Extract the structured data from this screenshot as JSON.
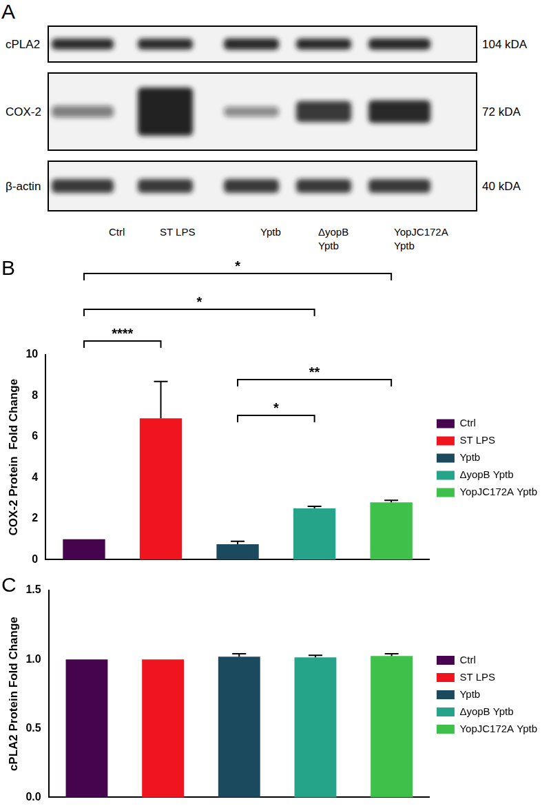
{
  "panels": [
    "A",
    "B",
    "C"
  ],
  "blot": {
    "rows": [
      {
        "label": "cPLA2",
        "size": "104 kDA"
      },
      {
        "label": "COX-2",
        "size": "72 kDA"
      },
      {
        "label": "β-actin",
        "size": "40 kDA"
      }
    ],
    "lanes": [
      [
        "Ctrl"
      ],
      [
        "ST LPS"
      ],
      [
        "Yptb"
      ],
      [
        "ΔyopB",
        "Yptb"
      ],
      [
        "YopJC172A",
        "Yptb"
      ]
    ]
  },
  "chart_data": [
    {
      "type": "bar",
      "categories": [
        "Ctrl",
        "ST LPS",
        "Yptb",
        "ΔyopB Yptb",
        "YopJC172A Yptb"
      ],
      "values": [
        1.0,
        6.9,
        0.75,
        2.5,
        2.8
      ],
      "errors": [
        0,
        1.8,
        0.15,
        0.1,
        0.1
      ],
      "colors": [
        "#46044e",
        "#f0141e",
        "#1b4a5e",
        "#25a48a",
        "#3fc04a"
      ],
      "ylabel": "COX-2 Protein  Fold Change",
      "ylim": [
        0,
        10
      ],
      "yticks": [
        0,
        2,
        4,
        6,
        8,
        10
      ],
      "grid": false,
      "legend": "right",
      "tick_labels": "y",
      "annotations": [
        {
          "from": "Ctrl",
          "to": "YopJC172A Yptb",
          "text": "*"
        },
        {
          "from": "Ctrl",
          "to": "ΔyopB Yptb",
          "text": "*"
        },
        {
          "from": "Ctrl",
          "to": "ST LPS",
          "text": "****"
        },
        {
          "from": "Yptb",
          "to": "YopJC172A Yptb",
          "text": "**"
        },
        {
          "from": "Yptb",
          "to": "ΔyopB Yptb",
          "text": "*"
        }
      ]
    },
    {
      "type": "bar",
      "categories": [
        "Ctrl",
        "ST LPS",
        "Yptb",
        "ΔyopB Yptb",
        "YopJC172A Yptb"
      ],
      "values": [
        1.0,
        1.0,
        1.02,
        1.015,
        1.025
      ],
      "errors": [
        0,
        0,
        0.02,
        0.015,
        0.015
      ],
      "colors": [
        "#46044e",
        "#f0141e",
        "#1b4a5e",
        "#25a48a",
        "#3fc04a"
      ],
      "ylabel": "cPLA2 Protein Fold Change",
      "ylim": [
        0,
        1.5
      ],
      "yticks": [
        {
          "value": 0,
          "label": "0.0"
        },
        {
          "value": 0.5,
          "label": "0.5"
        },
        {
          "value": 1,
          "label": "1.0"
        },
        {
          "value": 1.5,
          "label": "1.5"
        }
      ],
      "grid": false,
      "legend": "right",
      "tick_labels": "y"
    }
  ]
}
